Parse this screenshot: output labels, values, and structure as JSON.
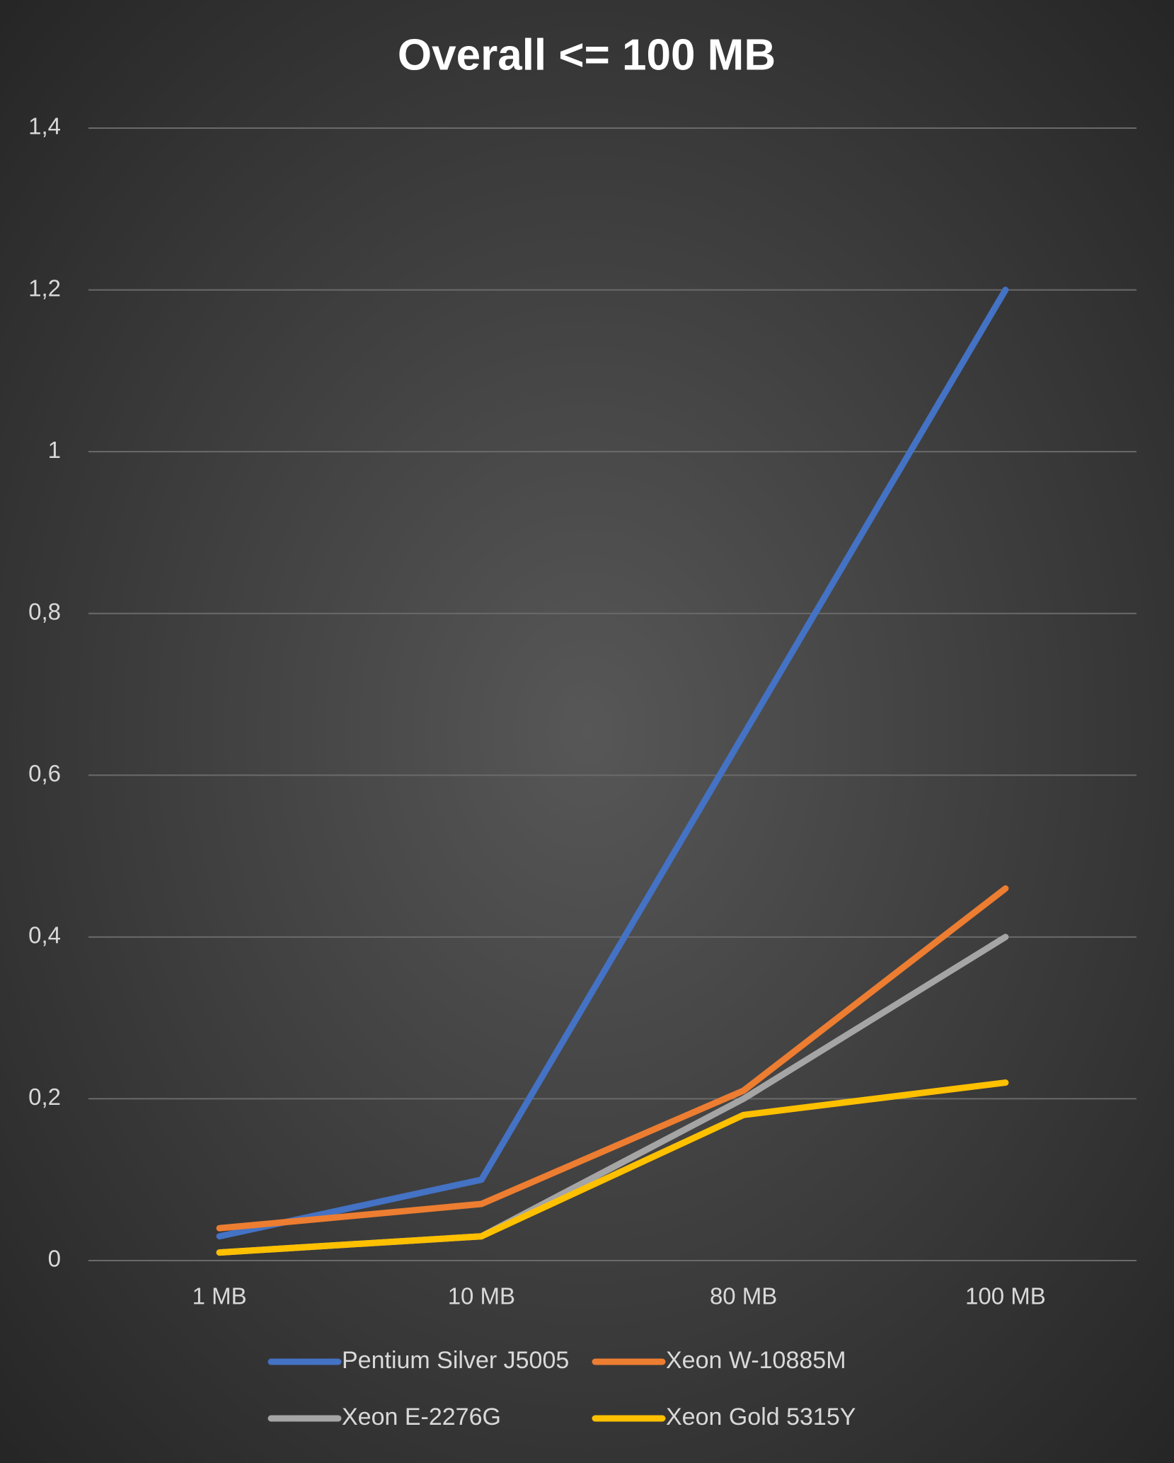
{
  "chart_data": {
    "type": "line",
    "title": "Overall <= 100 MB",
    "categories": [
      "1 MB",
      "10 MB",
      "80 MB",
      "100 MB"
    ],
    "series": [
      {
        "name": "Pentium Silver J5005",
        "color": "#4472c4",
        "values": [
          0.03,
          0.1,
          0.65,
          1.2
        ]
      },
      {
        "name": "Xeon W-10885M",
        "color": "#ed7d31",
        "values": [
          0.04,
          0.07,
          0.21,
          0.46
        ]
      },
      {
        "name": "Xeon E-2276G",
        "color": "#a5a5a5",
        "values": [
          0.01,
          0.03,
          0.2,
          0.4
        ]
      },
      {
        "name": "Xeon Gold 5315Y",
        "color": "#ffc000",
        "values": [
          0.01,
          0.03,
          0.18,
          0.22
        ]
      }
    ],
    "ylim": [
      0,
      1.4
    ],
    "yticks": [
      0,
      {
        "value": 0.2,
        "label": "0,2"
      },
      {
        "value": 0.4,
        "label": "0,4"
      },
      {
        "value": 0.6,
        "label": "0,6"
      },
      {
        "value": 0.8,
        "label": "0,8"
      },
      1,
      {
        "value": 1.2,
        "label": "1,2"
      },
      {
        "value": 1.4,
        "label": "1,4"
      }
    ],
    "grid": true,
    "legend": "bottom"
  }
}
